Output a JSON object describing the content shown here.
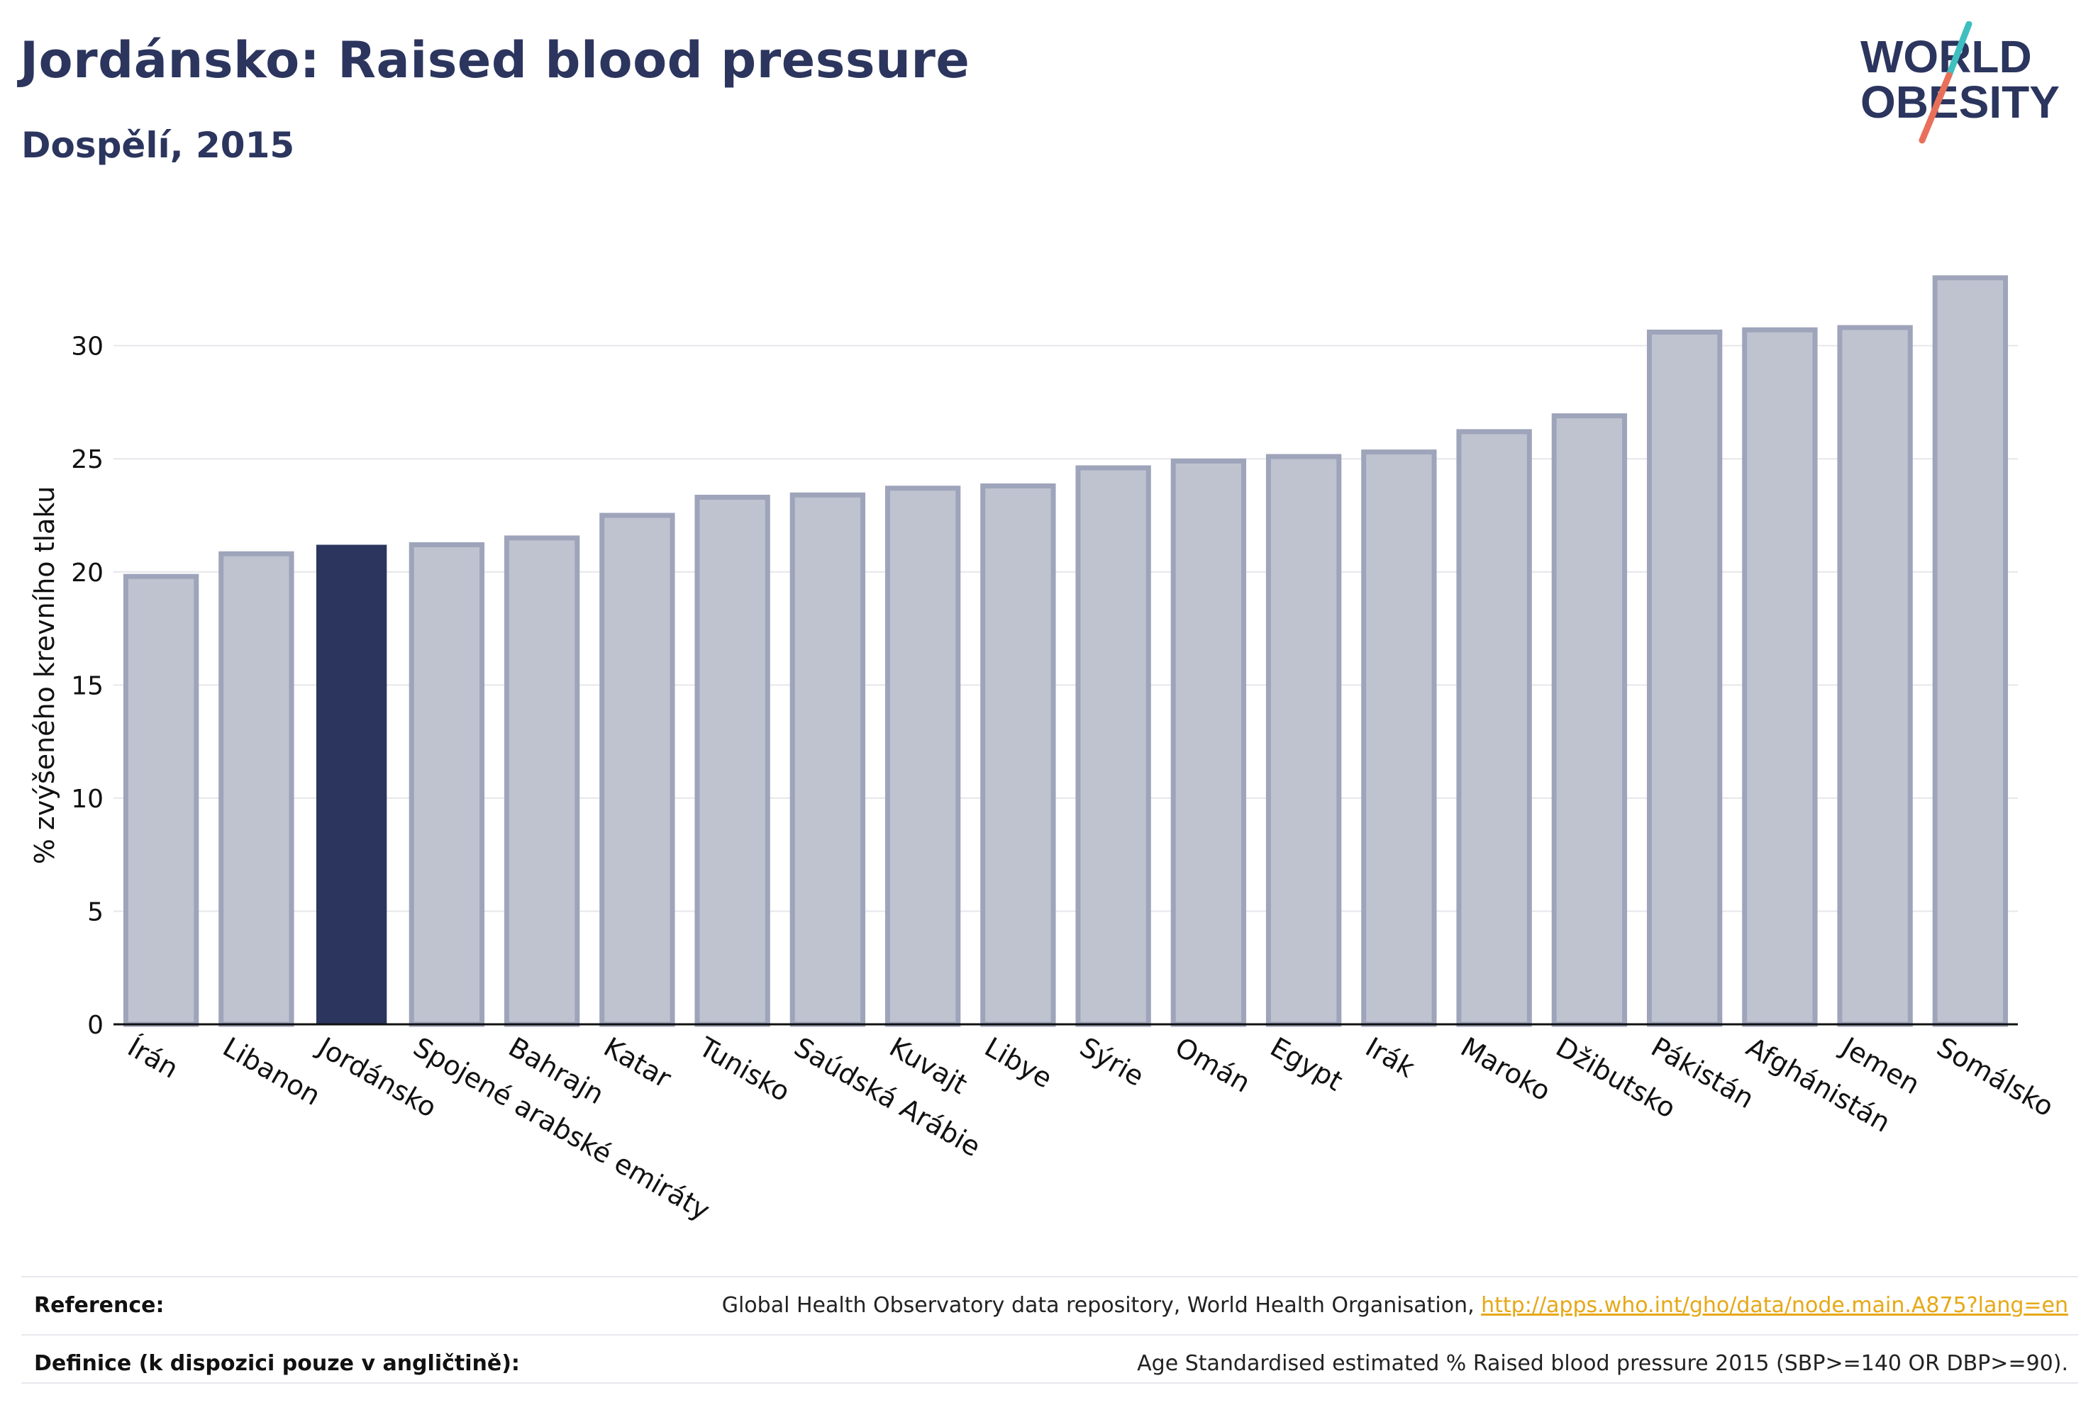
{
  "header": {
    "title": "Jordánsko: Raised blood pressure",
    "subtitle": "Dospělí, 2015"
  },
  "logo": {
    "line1": "WORLD",
    "line2": "OBESITY",
    "colors": {
      "text": "#2b355e",
      "slash_teal": "#3fbfbf",
      "slash_red": "#e8705a"
    }
  },
  "colors": {
    "bar_default_fill": "#bfc3d0",
    "bar_default_stroke": "#9ea4ba",
    "bar_highlight": "#2b355e",
    "gridline": "#e6e6ec",
    "axis": "#111111"
  },
  "chart_data": {
    "type": "bar",
    "ylabel": "% zvýšeného krevního tlaku",
    "xlabel": "",
    "ylim": [
      0,
      34
    ],
    "yticks": [
      0,
      5,
      10,
      15,
      20,
      25,
      30
    ],
    "grid": true,
    "highlight": "Jordánsko",
    "categories": [
      "Írán",
      "Libanon",
      "Jordánsko",
      "Spojené arabské emiráty",
      "Bahrajn",
      "Katar",
      "Tunisko",
      "Saúdská Arábie",
      "Kuvajt",
      "Libye",
      "Sýrie",
      "Omán",
      "Egypt",
      "Irák",
      "Maroko",
      "Džibutsko",
      "Pákistán",
      "Afghánistán",
      "Jemen",
      "Somálsko"
    ],
    "values": [
      19.8,
      20.8,
      21.2,
      21.2,
      21.5,
      22.5,
      23.3,
      23.4,
      23.7,
      23.8,
      24.6,
      24.9,
      25.1,
      25.3,
      26.2,
      26.9,
      30.6,
      30.7,
      30.8,
      33.0
    ]
  },
  "footer": {
    "reference_label": "Reference:",
    "reference_text": "Global Health Observatory data repository, World Health Organisation, ",
    "reference_link": "http://apps.who.int/gho/data/node.main.A875?lang=en",
    "definition_label": "Definice (k dispozici pouze v angličtině):",
    "definition_text": "Age Standardised estimated % Raised blood pressure 2015 (SBP>=140 OR DBP>=90)."
  }
}
